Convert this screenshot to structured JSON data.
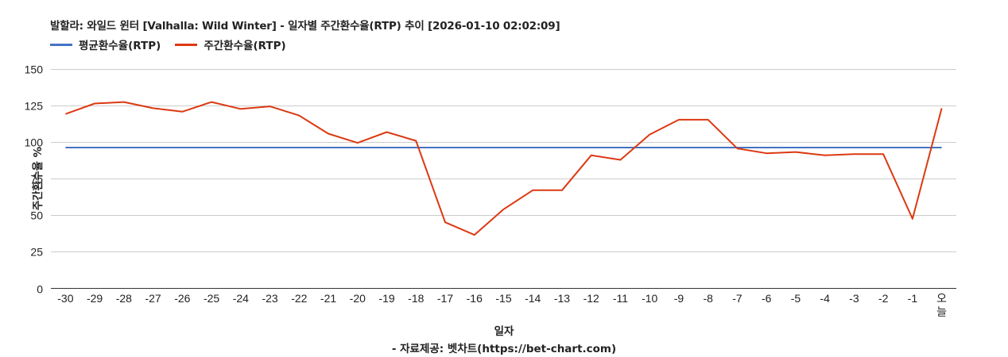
{
  "title": "발할라: 와일드 윈터 [Valhalla: Wild Winter] - 일자별 주간환수율(RTP) 추이 [2026-01-10 02:02:09]",
  "legend": [
    {
      "label": "평균환수율(RTP)",
      "color": "#4472c4"
    },
    {
      "label": "주간환수율(RTP)",
      "color": "#dc3912"
    }
  ],
  "axis": {
    "ylabel": "주간환수율 %",
    "xlabel": "일자"
  },
  "credit": "- 자료제공: 벳차트(https://bet-chart.com)",
  "chart_data": {
    "type": "line",
    "title": "발할라: 와일드 윈터 [Valhalla: Wild Winter] - 일자별 주간환수율(RTP) 추이 [2026-01-10 02:02:09]",
    "xlabel": "일자",
    "ylabel": "주간환수율 %",
    "ylim": [
      0,
      150
    ],
    "yticks": [
      0,
      25,
      50,
      75,
      100,
      125,
      150
    ],
    "grid": true,
    "legend_position": "top",
    "categories": [
      "-30",
      "-29",
      "-28",
      "-27",
      "-26",
      "-25",
      "-24",
      "-23",
      "-22",
      "-21",
      "-20",
      "-19",
      "-18",
      "-17",
      "-16",
      "-15",
      "-14",
      "-13",
      "-12",
      "-11",
      "-10",
      "-9",
      "-8",
      "-7",
      "-6",
      "-5",
      "-4",
      "-3",
      "-2",
      "-1",
      "오늘"
    ],
    "series": [
      {
        "name": "평균환수율(RTP)",
        "color": "#4472c4",
        "values": [
          96.1,
          96.1,
          96.1,
          96.1,
          96.1,
          96.1,
          96.1,
          96.1,
          96.1,
          96.1,
          96.1,
          96.1,
          96.1,
          96.1,
          96.1,
          96.1,
          96.1,
          96.1,
          96.1,
          96.1,
          96.1,
          96.1,
          96.1,
          96.1,
          96.1,
          96.1,
          96.1,
          96.1,
          96.1,
          96.1,
          96.1
        ]
      },
      {
        "name": "주간환수율(RTP)",
        "color": "#dc3912",
        "values": [
          119.0,
          126.2,
          127.2,
          123.0,
          120.6,
          127.2,
          122.5,
          124.2,
          118.0,
          105.6,
          99.3,
          106.7,
          100.7,
          45.1,
          36.5,
          54.0,
          67.0,
          67.0,
          90.8,
          87.7,
          105.0,
          115.1,
          115.1,
          95.5,
          92.2,
          93.1,
          90.8,
          91.7,
          91.7,
          47.5,
          122.9
        ]
      }
    ]
  }
}
